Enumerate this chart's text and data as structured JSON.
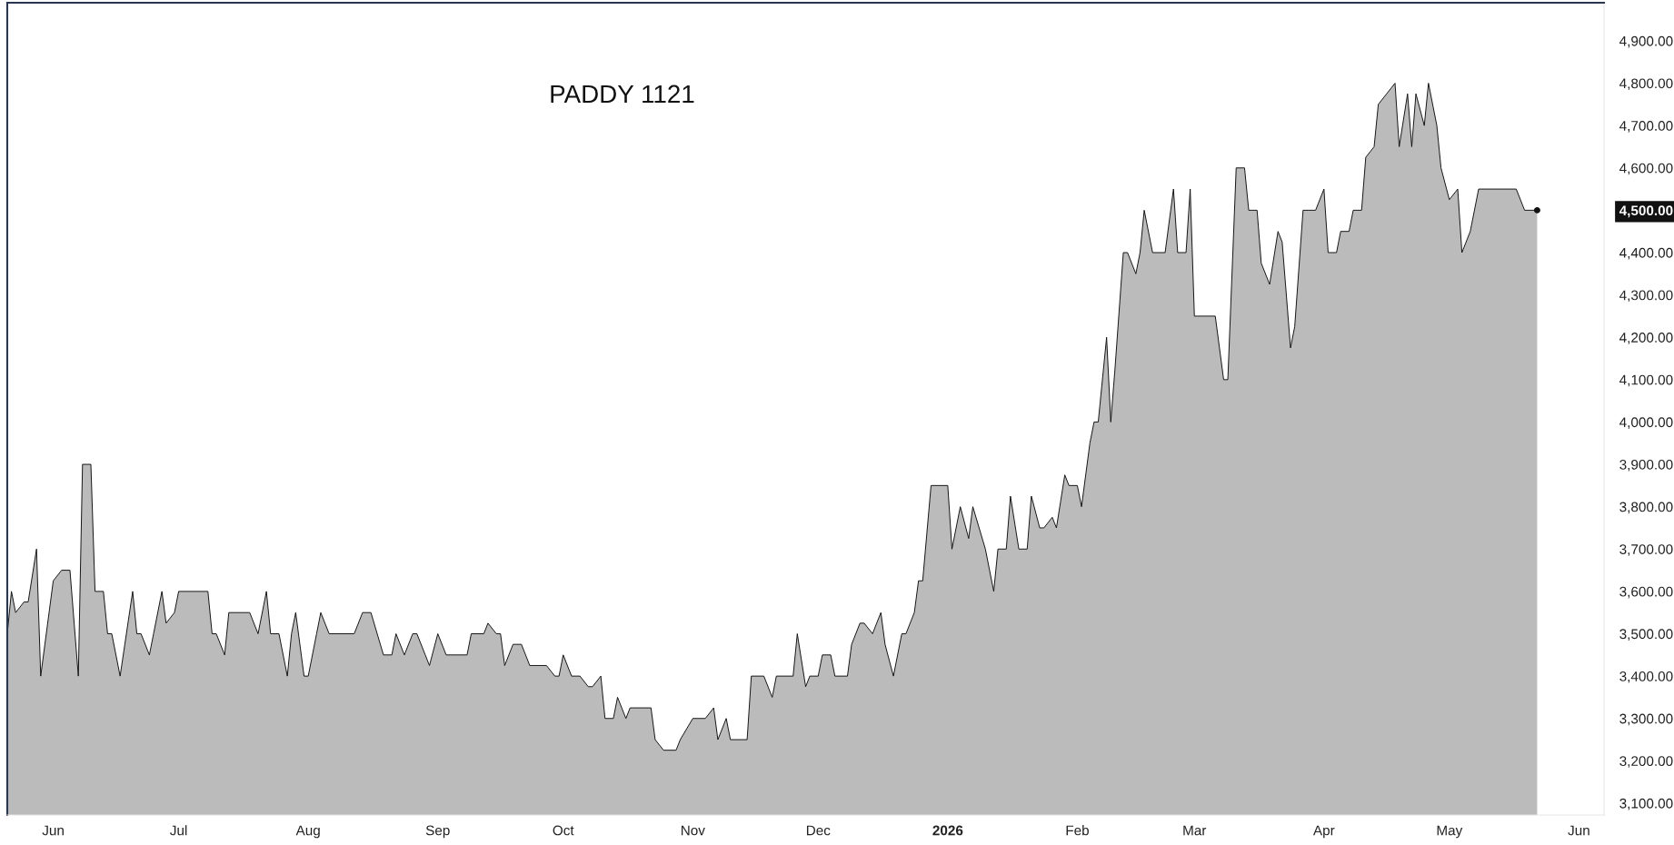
{
  "chart_data": {
    "type": "area",
    "title": "PADDY 1121",
    "x": [
      "2025-05-21",
      "2025-05-22",
      "2025-05-23",
      "2025-05-25",
      "2025-05-26",
      "2025-05-28",
      "2025-05-29",
      "2025-06-01",
      "2025-06-03",
      "2025-06-05",
      "2025-06-07",
      "2025-06-08",
      "2025-06-10",
      "2025-06-11",
      "2025-06-13",
      "2025-06-14",
      "2025-06-15",
      "2025-06-17",
      "2025-06-20",
      "2025-06-21",
      "2025-06-22",
      "2025-06-24",
      "2025-06-25",
      "2025-06-27",
      "2025-06-28",
      "2025-06-30",
      "2025-07-01",
      "2025-07-08",
      "2025-07-09",
      "2025-07-10",
      "2025-07-12",
      "2025-07-13",
      "2025-07-18",
      "2025-07-20",
      "2025-07-22",
      "2025-07-23",
      "2025-07-25",
      "2025-07-27",
      "2025-07-28",
      "2025-07-29",
      "2025-07-31",
      "2025-08-01",
      "2025-08-03",
      "2025-08-04",
      "2025-08-06",
      "2025-08-12",
      "2025-08-14",
      "2025-08-16",
      "2025-08-19",
      "2025-08-21",
      "2025-08-22",
      "2025-08-24",
      "2025-08-26",
      "2025-08-27",
      "2025-08-29",
      "2025-08-30",
      "2025-09-01",
      "2025-09-03",
      "2025-09-08",
      "2025-09-09",
      "2025-09-12",
      "2025-09-13",
      "2025-09-15",
      "2025-09-16",
      "2025-09-17",
      "2025-09-19",
      "2025-09-21",
      "2025-09-23",
      "2025-09-27",
      "2025-09-29",
      "2025-09-30",
      "2025-10-01",
      "2025-10-03",
      "2025-10-05",
      "2025-10-07",
      "2025-10-08",
      "2025-10-10",
      "2025-10-11",
      "2025-10-13",
      "2025-10-14",
      "2025-10-16",
      "2025-10-17",
      "2025-10-22",
      "2025-10-23",
      "2025-10-25",
      "2025-10-28",
      "2025-10-29",
      "2025-11-01",
      "2025-11-04",
      "2025-11-06",
      "2025-11-07",
      "2025-11-09",
      "2025-11-10",
      "2025-11-14",
      "2025-11-15",
      "2025-11-18",
      "2025-11-20",
      "2025-11-21",
      "2025-11-25",
      "2025-11-26",
      "2025-11-28",
      "2025-11-29",
      "2025-12-01",
      "2025-12-02",
      "2025-12-04",
      "2025-12-05",
      "2025-12-08",
      "2025-12-09",
      "2025-12-11",
      "2025-12-12",
      "2025-12-14",
      "2025-12-16",
      "2025-12-17",
      "2025-12-19",
      "2025-12-21",
      "2025-12-22",
      "2025-12-24",
      "2025-12-25",
      "2025-12-26",
      "2025-12-28",
      "2026-01-01",
      "2026-01-02",
      "2026-01-04",
      "2026-01-06",
      "2026-01-07",
      "2026-01-10",
      "2026-01-12",
      "2026-01-13",
      "2026-01-15",
      "2026-01-16",
      "2026-01-18",
      "2026-01-20",
      "2026-01-21",
      "2026-01-23",
      "2026-01-24",
      "2026-01-26",
      "2026-01-27",
      "2026-01-29",
      "2026-01-30",
      "2026-02-01",
      "2026-02-02",
      "2026-02-04",
      "2026-02-05",
      "2026-02-06",
      "2026-02-08",
      "2026-02-09",
      "2026-02-10",
      "2026-02-12",
      "2026-02-13",
      "2026-02-15",
      "2026-02-16",
      "2026-02-17",
      "2026-02-19",
      "2026-02-22",
      "2026-02-24",
      "2026-02-25",
      "2026-02-27",
      "2026-02-28",
      "2026-03-01",
      "2026-03-06",
      "2026-03-08",
      "2026-03-09",
      "2026-03-11",
      "2026-03-13",
      "2026-03-14",
      "2026-03-16",
      "2026-03-17",
      "2026-03-19",
      "2026-03-21",
      "2026-03-22",
      "2026-03-24",
      "2026-03-25",
      "2026-03-27",
      "2026-03-30",
      "2026-04-01",
      "2026-04-02",
      "2026-04-04",
      "2026-04-05",
      "2026-04-07",
      "2026-04-08",
      "2026-04-10",
      "2026-04-11",
      "2026-04-13",
      "2026-04-14",
      "2026-04-16",
      "2026-04-18",
      "2026-04-19",
      "2026-04-21",
      "2026-04-22",
      "2026-04-23",
      "2026-04-25",
      "2026-04-26",
      "2026-04-28",
      "2026-04-29",
      "2026-05-01",
      "2026-05-03",
      "2026-05-04",
      "2026-05-06",
      "2026-05-08",
      "2026-05-17",
      "2026-05-19",
      "2026-05-22"
    ],
    "series": [
      {
        "color": "#bbbbbb",
        "values": [
          3500,
          3600,
          3550,
          3575,
          3575,
          3700,
          3400,
          3625,
          3650,
          3650,
          3400,
          3900,
          3900,
          3600,
          3600,
          3500,
          3500,
          3400,
          3600,
          3500,
          3500,
          3450,
          3500,
          3600,
          3525,
          3550,
          3600,
          3600,
          3500,
          3500,
          3450,
          3550,
          3550,
          3500,
          3600,
          3500,
          3500,
          3400,
          3500,
          3550,
          3400,
          3400,
          3500,
          3550,
          3500,
          3500,
          3550,
          3550,
          3450,
          3450,
          3500,
          3450,
          3500,
          3500,
          3450,
          3425,
          3500,
          3450,
          3450,
          3500,
          3500,
          3525,
          3500,
          3500,
          3425,
          3475,
          3475,
          3425,
          3425,
          3400,
          3400,
          3450,
          3400,
          3400,
          3375,
          3375,
          3400,
          3300,
          3300,
          3350,
          3300,
          3325,
          3325,
          3250,
          3225,
          3225,
          3250,
          3300,
          3300,
          3325,
          3250,
          3300,
          3250,
          3250,
          3400,
          3400,
          3350,
          3400,
          3400,
          3500,
          3375,
          3400,
          3400,
          3450,
          3450,
          3400,
          3400,
          3475,
          3525,
          3525,
          3500,
          3550,
          3475,
          3400,
          3500,
          3500,
          3550,
          3625,
          3625,
          3850,
          3850,
          3700,
          3800,
          3725,
          3800,
          3700,
          3600,
          3700,
          3700,
          3825,
          3700,
          3700,
          3825,
          3750,
          3750,
          3775,
          3750,
          3875,
          3850,
          3850,
          3800,
          3950,
          4000,
          4000,
          4200,
          4000,
          4125,
          4400,
          4400,
          4350,
          4400,
          4500,
          4400,
          4400,
          4550,
          4400,
          4400,
          4550,
          4250,
          4250,
          4100,
          4100,
          4600,
          4600,
          4500,
          4500,
          4375,
          4325,
          4450,
          4425,
          4175,
          4225,
          4500,
          4500,
          4550,
          4400,
          4400,
          4450,
          4450,
          4500,
          4500,
          4625,
          4650,
          4750,
          4775,
          4800,
          4650,
          4775,
          4650,
          4775,
          4700,
          4800,
          4700,
          4600,
          4525,
          4550,
          4400,
          4450,
          4550,
          4550,
          4500,
          4500
        ]
      }
    ],
    "xlim": [
      "2025-05-21",
      "2026-06-07"
    ],
    "xticks": [
      {
        "value": "2025-06-01",
        "label": "Jun"
      },
      {
        "value": "2025-07-01",
        "label": "Jul"
      },
      {
        "value": "2025-08-01",
        "label": "Aug"
      },
      {
        "value": "2025-09-01",
        "label": "Sep"
      },
      {
        "value": "2025-10-01",
        "label": "Oct"
      },
      {
        "value": "2025-11-01",
        "label": "Nov"
      },
      {
        "value": "2025-12-01",
        "label": "Dec"
      },
      {
        "value": "2026-01-01",
        "label": "2026"
      },
      {
        "value": "2026-02-01",
        "label": "Feb"
      },
      {
        "value": "2026-03-01",
        "label": "Mar"
      },
      {
        "value": "2026-04-01",
        "label": "Apr"
      },
      {
        "value": "2026-05-01",
        "label": "May"
      },
      {
        "value": "2026-06-01",
        "label": "Jun"
      }
    ],
    "ylim": [
      3072,
      4990
    ],
    "yticks": [
      {
        "value": 3100,
        "label": "3,100.00"
      },
      {
        "value": 3200,
        "label": "3,200.00"
      },
      {
        "value": 3300,
        "label": "3,300.00"
      },
      {
        "value": 3400,
        "label": "3,400.00"
      },
      {
        "value": 3500,
        "label": "3,500.00"
      },
      {
        "value": 3600,
        "label": "3,600.00"
      },
      {
        "value": 3700,
        "label": "3,700.00"
      },
      {
        "value": 3800,
        "label": "3,800.00"
      },
      {
        "value": 3900,
        "label": "3,900.00"
      },
      {
        "value": 4000,
        "label": "4,000.00"
      },
      {
        "value": 4100,
        "label": "4,100.00"
      },
      {
        "value": 4200,
        "label": "4,200.00"
      },
      {
        "value": 4300,
        "label": "4,300.00"
      },
      {
        "value": 4400,
        "label": "4,400.00"
      },
      {
        "value": 4500,
        "label": "4,500.00"
      },
      {
        "value": 4600,
        "label": "4,600.00"
      },
      {
        "value": 4700,
        "label": "4,700.00"
      },
      {
        "value": 4800,
        "label": "4,800.00"
      },
      {
        "value": 4900,
        "label": "4,900.00"
      }
    ],
    "grid": false
  }
}
